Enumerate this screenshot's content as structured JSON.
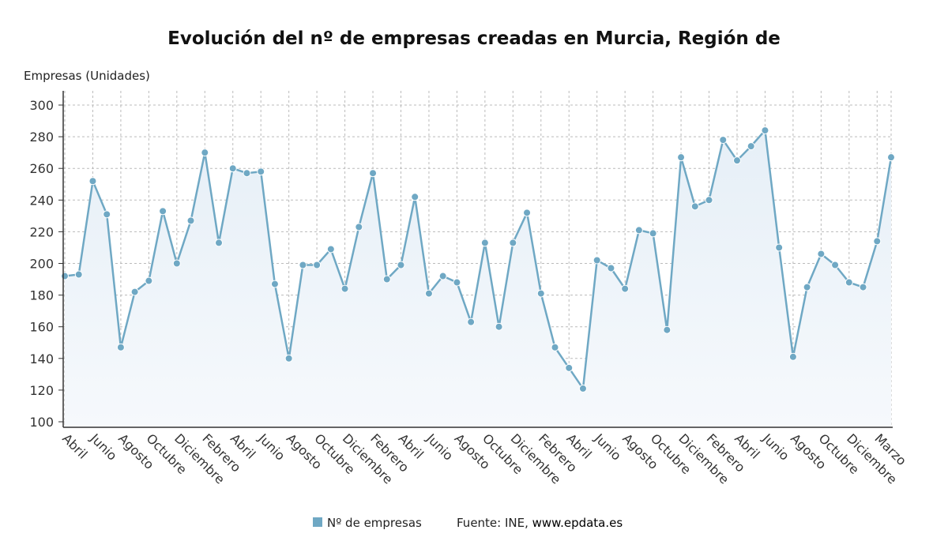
{
  "chart_data": {
    "type": "area",
    "title": "Evolución del nº de empresas creadas en Murcia, Región de",
    "ylabel": "Empresas (Unidades)",
    "xlabel": "",
    "ylim": [
      100,
      300
    ],
    "yticks": [
      100,
      120,
      140,
      160,
      180,
      200,
      220,
      240,
      260,
      280,
      300
    ],
    "grid": true,
    "legend_placement": "bottom",
    "xtick_labels": [
      "Abril",
      "Junio",
      "Agosto",
      "Octubre",
      "Diciembre",
      "Febrero",
      "Abril",
      "Junio",
      "Agosto",
      "Octubre",
      "Diciembre",
      "Febrero",
      "Abril",
      "Junio",
      "Agosto",
      "Octubre",
      "Diciembre",
      "Febrero",
      "Abril",
      "Junio",
      "Agosto",
      "Octubre",
      "Diciembre",
      "Febrero",
      "Abril",
      "Junio",
      "Agosto",
      "Octubre",
      "Diciembre",
      "Marzo"
    ],
    "series": [
      {
        "name": "Nº de empresas",
        "color": "#6fa8c4",
        "values": [
          192,
          193,
          252,
          231,
          147,
          182,
          189,
          233,
          200,
          227,
          270,
          213,
          260,
          257,
          258,
          187,
          140,
          199,
          199,
          209,
          184,
          223,
          257,
          190,
          199,
          242,
          181,
          192,
          188,
          163,
          213,
          160,
          213,
          232,
          181,
          147,
          134,
          121,
          202,
          197,
          184,
          221,
          219,
          158,
          267,
          236,
          240,
          278,
          265,
          274,
          284,
          210,
          141,
          185,
          206,
          199,
          188,
          185,
          214,
          267
        ]
      }
    ]
  },
  "legend": {
    "label": "Nº de empresas",
    "color": "#6fa8c4"
  },
  "source": {
    "prefix": "Fuente: INE, ",
    "site": "www.epdata.es"
  }
}
